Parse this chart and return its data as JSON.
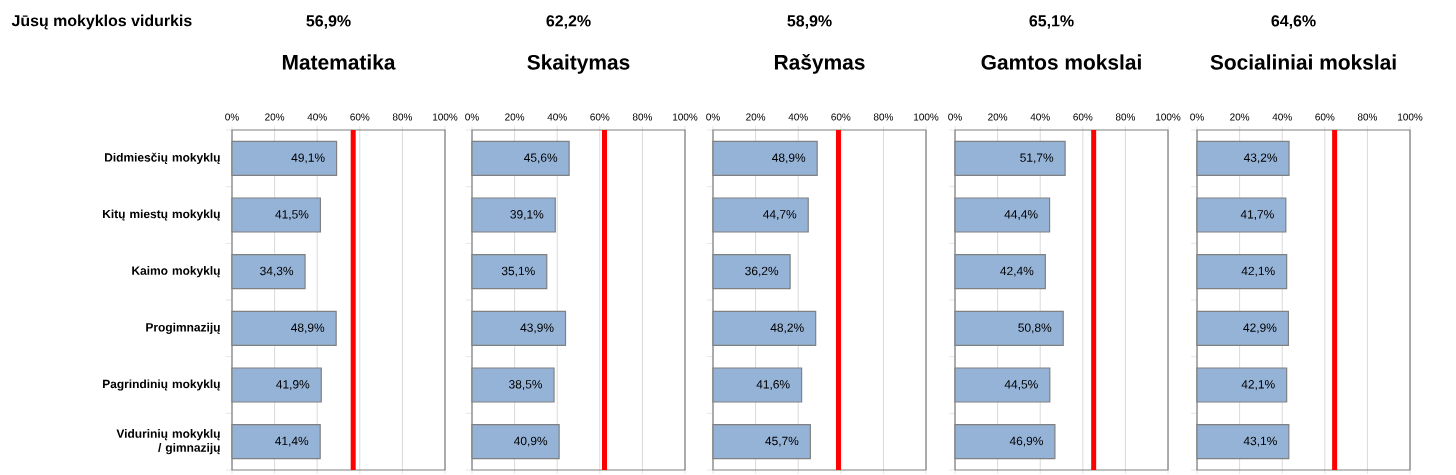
{
  "chart_data": [
    {
      "type": "bar",
      "orientation": "horizontal",
      "title": "Matematika",
      "annotations": [
        "Jūsų mokyklos vidurkis",
        "56,9%"
      ],
      "categories": [
        "Didmiesčių mokyklų",
        "Kitų miestų mokyklų",
        "Kaimo mokyklų",
        "Progimnazijų",
        "Pagrindinių mokyklų",
        "Vidurinių mokyklų / gimnazijų"
      ],
      "values": [
        49.1,
        41.5,
        34.3,
        48.9,
        41.9,
        41.4
      ],
      "value_labels": [
        "49,1%",
        "41,5%",
        "34,3%",
        "48,9%",
        "41,9%",
        "41,4%"
      ],
      "color": "#95b3d7",
      "xlim": [
        0,
        100
      ],
      "xticks": [
        {
          "value": 0,
          "label": "0%"
        },
        {
          "value": 20,
          "label": "20%"
        },
        {
          "value": 40,
          "label": "40%"
        },
        {
          "value": 60,
          "label": "60%"
        },
        {
          "value": 80,
          "label": "80%"
        },
        {
          "value": 100,
          "label": "100%"
        }
      ],
      "grid": "x",
      "ref_lines": [
        {
          "axis": "x",
          "value": 56.9,
          "color": "#ff0000"
        }
      ]
    },
    {
      "type": "bar",
      "orientation": "horizontal",
      "title": "Skaitymas",
      "categories": [
        null,
        null,
        null,
        null,
        null,
        null
      ],
      "values": [
        45.6,
        39.1,
        35.1,
        43.9,
        38.5,
        40.9
      ],
      "value_labels": [
        "45,6%",
        "39,1%",
        "35,1%",
        "43,9%",
        "38,5%",
        "40,9%"
      ],
      "color": "#95b3d7",
      "xlim": [
        0,
        100
      ],
      "xticks": [
        {
          "value": 0,
          "label": "0%"
        },
        {
          "value": 20,
          "label": "20%"
        },
        {
          "value": 40,
          "label": "40%"
        },
        {
          "value": 60,
          "label": "60%"
        },
        {
          "value": 80,
          "label": "80%"
        },
        {
          "value": 100,
          "label": "100%"
        }
      ],
      "grid": "x",
      "tick_labels": "x",
      "annotations": [
        "62,2%"
      ],
      "ref_lines": [
        {
          "axis": "x",
          "value": 62.2,
          "color": "#ff0000"
        }
      ]
    },
    {
      "type": "bar",
      "orientation": "horizontal",
      "title": "Rašymas",
      "categories": [
        null,
        null,
        null,
        null,
        null,
        null
      ],
      "values": [
        48.9,
        44.7,
        36.2,
        48.2,
        41.6,
        45.7
      ],
      "value_labels": [
        "48,9%",
        "44,7%",
        "36,2%",
        "48,2%",
        "41,6%",
        "45,7%"
      ],
      "color": "#95b3d7",
      "xlim": [
        0,
        100
      ],
      "xticks": [
        {
          "value": 0,
          "label": "0%"
        },
        {
          "value": 20,
          "label": "20%"
        },
        {
          "value": 40,
          "label": "40%"
        },
        {
          "value": 60,
          "label": "60%"
        },
        {
          "value": 80,
          "label": "80%"
        },
        {
          "value": 100,
          "label": "100%"
        }
      ],
      "grid": "x",
      "tick_labels": "x",
      "annotations": [
        "58,9%"
      ],
      "ref_lines": [
        {
          "axis": "x",
          "value": 58.9,
          "color": "#ff0000"
        }
      ]
    },
    {
      "type": "bar",
      "orientation": "horizontal",
      "title": "Gamtos mokslai",
      "categories": [
        null,
        null,
        null,
        null,
        null,
        null
      ],
      "values": [
        51.7,
        44.4,
        42.4,
        50.8,
        44.5,
        46.9
      ],
      "value_labels": [
        "51,7%",
        "44,4%",
        "42,4%",
        "50,8%",
        "44,5%",
        "46,9%"
      ],
      "color": "#95b3d7",
      "xlim": [
        0,
        100
      ],
      "xticks": [
        {
          "value": 0,
          "label": "0%"
        },
        {
          "value": 20,
          "label": "20%"
        },
        {
          "value": 40,
          "label": "40%"
        },
        {
          "value": 60,
          "label": "60%"
        },
        {
          "value": 80,
          "label": "80%"
        },
        {
          "value": 100,
          "label": "100%"
        }
      ],
      "grid": "x",
      "tick_labels": "x",
      "annotations": [
        "65,1%"
      ],
      "ref_lines": [
        {
          "axis": "x",
          "value": 65.1,
          "color": "#ff0000"
        }
      ]
    },
    {
      "type": "bar",
      "orientation": "horizontal",
      "title": "Socialiniai mokslai",
      "categories": [
        null,
        null,
        null,
        null,
        null,
        null
      ],
      "values": [
        43.2,
        41.7,
        42.1,
        42.9,
        42.1,
        43.1
      ],
      "value_labels": [
        "43,2%",
        "41,7%",
        "42,1%",
        "42,9%",
        "42,1%",
        "43,1%"
      ],
      "color": "#95b3d7",
      "xlim": [
        0,
        100
      ],
      "xticks": [
        {
          "value": 0,
          "label": "0%"
        },
        {
          "value": 20,
          "label": "20%"
        },
        {
          "value": 40,
          "label": "40%"
        },
        {
          "value": 60,
          "label": "60%"
        },
        {
          "value": 80,
          "label": "80%"
        },
        {
          "value": 100,
          "label": "100%"
        }
      ],
      "grid": "x",
      "tick_labels": "x",
      "annotations": [
        "64,6%"
      ],
      "ref_lines": [
        {
          "axis": "x",
          "value": 64.6,
          "color": "#ff0000"
        }
      ]
    }
  ]
}
